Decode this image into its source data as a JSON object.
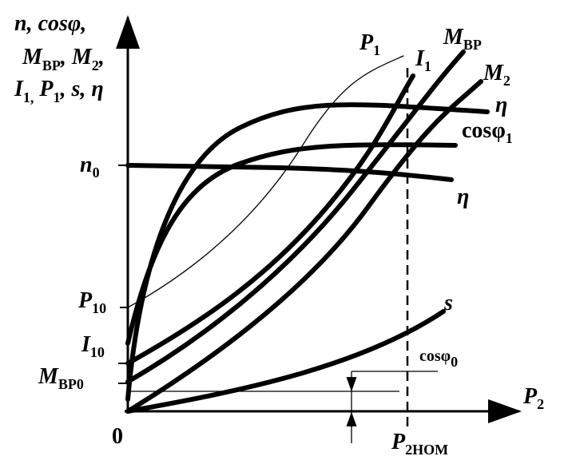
{
  "axis_label_lines": [
    [
      {
        "text": "n, cosφ,"
      }
    ],
    [
      {
        "text": "M"
      },
      {
        "sub": "BP"
      },
      {
        "text": ", M"
      },
      {
        "sub": "2"
      },
      {
        "text": ","
      }
    ],
    [
      {
        "text": "I"
      },
      {
        "sub": "1,"
      },
      {
        "text": " P"
      },
      {
        "sub": "1"
      },
      {
        "text": ", s, η"
      }
    ]
  ],
  "labels": {
    "p1": {
      "text": "P",
      "sub": "1"
    },
    "i1": {
      "text": "I",
      "sub": "1"
    },
    "mbp": {
      "text": "M",
      "sub": "BP"
    },
    "m2": {
      "text": "M",
      "sub": "2"
    },
    "eta_top": {
      "text": "η"
    },
    "cos1": {
      "text": "cosφ",
      "sub": "1"
    },
    "n0": {
      "text": "n",
      "sub": "0"
    },
    "eta_low": {
      "text": "η"
    },
    "p10": {
      "text": "P",
      "sub": "10"
    },
    "i10": {
      "text": "I",
      "sub": "10"
    },
    "mbp0": {
      "text": "M",
      "sub": "BP0"
    },
    "s": {
      "text": "s"
    },
    "cos0": {
      "text": "cosφ",
      "sub": "0"
    },
    "origin": {
      "text": "0"
    },
    "p2": {
      "text": "P",
      "sub": "2"
    },
    "p2nom": {
      "text": "P",
      "sub": "2HOM"
    }
  }
}
